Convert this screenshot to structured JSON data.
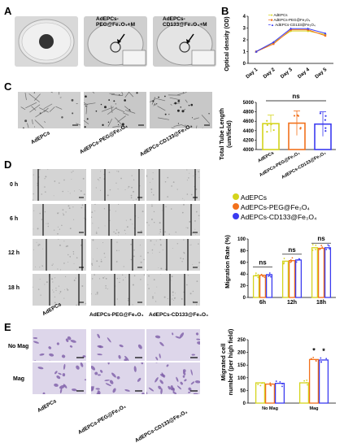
{
  "panels": {
    "a": "A",
    "b": "B",
    "c": "C",
    "d": "D",
    "e": "E"
  },
  "panel_a": {
    "labels": [
      "AdEPCs-\nPEG@Fe₃O₄+M",
      "AdEPCs-\nCD133@Fe₃O₄+M"
    ]
  },
  "panel_b": {
    "ylabel": "Optical density (OD)",
    "legend": [
      "AdEPCs",
      "AdEPCs-PEG@Fe₃O₄",
      "AdEPCs-CD133@Fe₃O₄"
    ]
  },
  "panel_c": {
    "captions": [
      "AdEPCs",
      "AdEPCs-PEG@Fe₃O₄",
      "AdEPCs-CD133@Fe₃O₄"
    ],
    "ylabel": "Total Tube Length\n(um/field)",
    "sig": "ns"
  },
  "panel_d": {
    "rows": [
      "0 h",
      "6 h",
      "12 h",
      "18 h"
    ],
    "captions": [
      "AdEPCs",
      "AdEPCs-PEG@Fe₃O₄",
      "AdEPCs-CD133@Fe₃O₄"
    ],
    "legend": [
      "AdEPCs",
      "AdEPCs-PEG@Fe₃O₄",
      "AdEPCs-CD133@Fe₃O₄"
    ],
    "ylabel": "Migration Rate (%)",
    "sig": [
      "ns",
      "ns",
      "ns"
    ]
  },
  "panel_e": {
    "rows": [
      "No Mag",
      "Mag"
    ],
    "captions": [
      "AdEPCs",
      "AdEPCs-PEG@Fe₃O₄",
      "AdEPCs-CD133@Fe₃O₄"
    ],
    "ylabel": "Migrated cell\nnumber (per high field)",
    "sig": [
      "*",
      "*"
    ]
  },
  "colors": {
    "adepcs": "#d4d41c",
    "peg": "#f2711c",
    "cd133": "#3b3bf0"
  },
  "chart_data": [
    {
      "id": "b",
      "type": "line",
      "x": [
        "Day 1",
        "Day 2",
        "Day 3",
        "Day 4",
        "Day 5"
      ],
      "ylim": [
        0,
        4
      ],
      "yticks": [
        0,
        1,
        2,
        3,
        4
      ],
      "ylabel": "Optical density (OD)",
      "series": [
        {
          "name": "AdEPCs",
          "values": [
            1.0,
            1.75,
            2.75,
            2.75,
            2.45
          ]
        },
        {
          "name": "AdEPCs-PEG@Fe₃O₄",
          "values": [
            1.0,
            1.65,
            2.85,
            2.85,
            2.35
          ]
        },
        {
          "name": "AdEPCs-CD133@Fe₃O₄",
          "values": [
            1.0,
            1.8,
            2.95,
            2.95,
            2.55
          ]
        }
      ]
    },
    {
      "id": "c",
      "type": "bar",
      "categories": [
        "AdEPCs",
        "AdEPCs-PEG@Fe₃O₄",
        "AdEPCs-CD133@Fe₃O₄"
      ],
      "values": [
        4550,
        4560,
        4540
      ],
      "errors": [
        180,
        260,
        260
      ],
      "ylim": [
        4000,
        5000
      ],
      "yticks": [
        4000,
        4200,
        4400,
        4600,
        4800,
        5000
      ],
      "ylabel": "Total Tube Length (um/field)"
    },
    {
      "id": "d",
      "type": "bar",
      "categories": [
        "6h",
        "12h",
        "18h"
      ],
      "series": [
        {
          "name": "AdEPCs",
          "values": [
            37,
            62,
            85
          ]
        },
        {
          "name": "AdEPCs-PEG@Fe₃O₄",
          "values": [
            38,
            63,
            84
          ]
        },
        {
          "name": "AdEPCs-CD133@Fe₃O₄",
          "values": [
            39,
            64,
            85
          ]
        }
      ],
      "ylim": [
        0,
        100
      ],
      "yticks": [
        0,
        20,
        40,
        60,
        80,
        100
      ],
      "ylabel": "Migration Rate (%)"
    },
    {
      "id": "e",
      "type": "bar",
      "categories": [
        "No Mag",
        "Mag"
      ],
      "series": [
        {
          "name": "AdEPCs",
          "values": [
            80,
            80
          ]
        },
        {
          "name": "AdEPCs-PEG@Fe₃O₄",
          "values": [
            75,
            172
          ]
        },
        {
          "name": "AdEPCs-CD133@Fe₃O₄",
          "values": [
            78,
            170
          ]
        }
      ],
      "ylim": [
        0,
        250
      ],
      "yticks": [
        0,
        50,
        100,
        150,
        200,
        250
      ],
      "ylabel": "Migrated cell number (per high field)"
    }
  ]
}
